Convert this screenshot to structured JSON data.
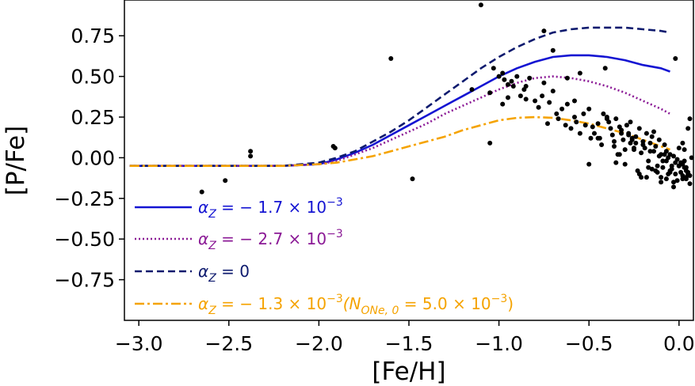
{
  "chart_data": {
    "type": "line",
    "xlabel": "[Fe/H]",
    "ylabel": "[P/Fe]",
    "xlim": [
      -3.08,
      0.08
    ],
    "ylim": [
      -1.0,
      0.97
    ],
    "x_ticks": [
      -3.0,
      -2.5,
      -2.0,
      -1.5,
      -1.0,
      -0.5,
      0.0
    ],
    "x_tick_labels": [
      "−3.0",
      "−2.5",
      "−2.0",
      "−1.5",
      "−1.0",
      "−0.5",
      "0.0"
    ],
    "y_ticks": [
      0.75,
      0.5,
      0.25,
      0.0,
      -0.25,
      -0.5,
      -0.75
    ],
    "y_tick_labels": [
      "0.75",
      "0.50",
      "0.25",
      "0.00",
      "−0.25",
      "−0.50",
      "−0.75"
    ],
    "grid": false,
    "legend_position": "lower-left",
    "series": [
      {
        "name": "αZ = −1.7 × 10⁻³",
        "color": "#1414d2",
        "dash": "solid",
        "x": [
          -3.05,
          -2.5,
          -2.2,
          -2.0,
          -1.9,
          -1.8,
          -1.7,
          -1.6,
          -1.5,
          -1.4,
          -1.3,
          -1.2,
          -1.1,
          -1.0,
          -0.9,
          -0.8,
          -0.7,
          -0.6,
          -0.5,
          -0.4,
          -0.3,
          -0.2,
          -0.1,
          -0.05
        ],
        "y": [
          -0.05,
          -0.05,
          -0.05,
          -0.04,
          -0.01,
          0.03,
          0.08,
          0.14,
          0.2,
          0.26,
          0.32,
          0.38,
          0.44,
          0.5,
          0.55,
          0.59,
          0.62,
          0.63,
          0.63,
          0.62,
          0.6,
          0.57,
          0.55,
          0.53
        ]
      },
      {
        "name": "αZ = −2.7 × 10⁻³",
        "color": "#8b1a96",
        "dash": "dotted",
        "x": [
          -3.05,
          -2.5,
          -2.2,
          -2.0,
          -1.9,
          -1.8,
          -1.7,
          -1.6,
          -1.5,
          -1.4,
          -1.3,
          -1.2,
          -1.1,
          -1.0,
          -0.9,
          -0.8,
          -0.7,
          -0.6,
          -0.5,
          -0.4,
          -0.3,
          -0.2,
          -0.1,
          -0.05
        ],
        "y": [
          -0.05,
          -0.05,
          -0.05,
          -0.04,
          -0.02,
          0.02,
          0.06,
          0.11,
          0.16,
          0.21,
          0.27,
          0.32,
          0.37,
          0.42,
          0.46,
          0.49,
          0.5,
          0.49,
          0.47,
          0.44,
          0.4,
          0.35,
          0.3,
          0.27
        ]
      },
      {
        "name": "αZ = 0",
        "color": "#0d1a6e",
        "dash": "dashed",
        "x": [
          -3.05,
          -2.5,
          -2.2,
          -2.0,
          -1.9,
          -1.8,
          -1.7,
          -1.6,
          -1.5,
          -1.4,
          -1.3,
          -1.2,
          -1.1,
          -1.0,
          -0.9,
          -0.8,
          -0.7,
          -0.6,
          -0.5,
          -0.4,
          -0.3,
          -0.2,
          -0.1,
          -0.05
        ],
        "y": [
          -0.05,
          -0.05,
          -0.05,
          -0.03,
          0.0,
          0.04,
          0.1,
          0.16,
          0.23,
          0.31,
          0.39,
          0.47,
          0.55,
          0.62,
          0.68,
          0.73,
          0.77,
          0.79,
          0.8,
          0.8,
          0.8,
          0.79,
          0.78,
          0.77
        ]
      },
      {
        "name": "αZ = −1.3 × 10⁻³(NONe,0 = 5.0 × 10⁻³)",
        "color": "#f5a300",
        "dash": "dashdot",
        "x": [
          -3.05,
          -2.5,
          -2.2,
          -2.0,
          -1.9,
          -1.8,
          -1.7,
          -1.6,
          -1.5,
          -1.4,
          -1.3,
          -1.2,
          -1.1,
          -1.0,
          -0.9,
          -0.8,
          -0.7,
          -0.6,
          -0.5,
          -0.4,
          -0.3,
          -0.2,
          -0.1,
          -0.05
        ],
        "y": [
          -0.05,
          -0.05,
          -0.05,
          -0.04,
          -0.03,
          -0.01,
          0.01,
          0.04,
          0.07,
          0.1,
          0.13,
          0.17,
          0.2,
          0.23,
          0.245,
          0.25,
          0.245,
          0.23,
          0.21,
          0.18,
          0.15,
          0.11,
          0.07,
          0.05
        ]
      }
    ],
    "scatter": {
      "color": "#000000",
      "x": [
        -2.65,
        -2.52,
        -2.38,
        -2.38,
        -1.92,
        -1.91,
        -1.6,
        -1.48,
        -1.15,
        -1.1,
        -1.05,
        -1.03,
        -1.0,
        -0.98,
        -0.97,
        -0.95,
        -0.93,
        -0.92,
        -0.9,
        -0.88,
        -0.86,
        -0.85,
        -0.83,
        -0.8,
        -0.78,
        -0.76,
        -0.75,
        -0.73,
        -0.72,
        -0.7,
        -0.68,
        -0.67,
        -0.65,
        -0.63,
        -0.62,
        -0.6,
        -0.58,
        -0.57,
        -0.55,
        -0.53,
        -0.52,
        -0.5,
        -0.49,
        -0.48,
        -0.47,
        -0.45,
        -0.44,
        -0.43,
        -0.42,
        -0.4,
        -0.39,
        -0.38,
        -0.37,
        -0.36,
        -0.35,
        -0.34,
        -0.33,
        -0.32,
        -0.31,
        -0.3,
        -0.29,
        -0.28,
        -0.27,
        -0.26,
        -0.25,
        -0.24,
        -0.23,
        -0.22,
        -0.21,
        -0.2,
        -0.19,
        -0.18,
        -0.17,
        -0.16,
        -0.15,
        -0.14,
        -0.13,
        -0.12,
        -0.11,
        -0.1,
        -0.09,
        -0.08,
        -0.07,
        -0.06,
        -0.05,
        -0.04,
        -0.03,
        -0.02,
        -0.01,
        0.0,
        0.01,
        0.02,
        0.03,
        0.04,
        0.05,
        0.06,
        0.07,
        -0.41,
        -0.3,
        -0.22,
        -0.15,
        -0.1,
        -0.05,
        0.0,
        0.02,
        0.04,
        0.06,
        -0.35,
        -0.25,
        -0.18,
        -0.12,
        -0.08,
        -0.03,
        0.03,
        0.05,
        -0.5,
        -0.4,
        -0.32,
        -0.27,
        -0.2,
        -0.14,
        -0.09,
        -0.06,
        -0.02,
        0.01,
        0.03,
        0.05,
        -0.45,
        -0.36,
        -0.28,
        -0.24,
        -0.17,
        -0.11,
        -0.07,
        -0.04,
        -0.01,
        0.02,
        0.04,
        0.06,
        -0.33,
        -0.26,
        -0.21,
        -0.16,
        -0.13,
        -0.1,
        -0.07,
        -0.05,
        -0.02,
        0.0,
        0.02,
        0.04,
        -0.7,
        -0.62,
        -0.55,
        -0.85,
        -0.95,
        -0.98,
        -1.05,
        -0.03,
        -0.75,
        -0.58
      ],
      "y": [
        -0.21,
        -0.14,
        0.04,
        0.01,
        0.07,
        0.06,
        0.61,
        -0.13,
        0.42,
        0.94,
        0.09,
        0.55,
        0.5,
        0.52,
        0.48,
        0.45,
        0.47,
        0.44,
        0.5,
        0.38,
        0.42,
        0.36,
        0.49,
        0.35,
        0.31,
        0.38,
        0.78,
        0.21,
        0.34,
        0.66,
        0.27,
        0.24,
        0.3,
        0.2,
        0.33,
        0.18,
        0.25,
        0.22,
        0.15,
        0.27,
        0.2,
        -0.04,
        0.12,
        0.19,
        0.15,
        0.21,
        0.12,
        0.08,
        0.27,
        0.25,
        0.22,
        0.18,
        0.14,
        0.1,
        0.24,
        0.02,
        0.19,
        0.15,
        0.11,
        0.05,
        0.2,
        0.15,
        0.09,
        0.12,
        0.05,
        0.13,
        -0.08,
        0.18,
        0.03,
        0.1,
        0.06,
        0.15,
        -0.02,
        0.09,
        0.13,
        0.04,
        0.07,
        -0.05,
        0.11,
        0.02,
        -0.02,
        0.08,
        0.04,
        -0.1,
        0.02,
        -0.05,
        0.01,
        0.61,
        -0.01,
        0.06,
        -0.03,
        0.09,
        0.05,
        -0.06,
        0.18,
        0.24,
        0.0,
        0.55,
        -0.04,
        -0.1,
        -0.07,
        -0.12,
        -0.08,
        -0.05,
        -0.13,
        -0.08,
        -0.11,
        -0.03,
        0.06,
        -0.12,
        -0.09,
        0.02,
        -0.15,
        -0.06,
        -0.09,
        0.3,
        0.24,
        0.17,
        0.22,
        0.08,
        0.16,
        -0.06,
        0.0,
        -0.1,
        -0.09,
        -0.02,
        -0.1,
        0.12,
        0.07,
        0.14,
        0.09,
        -0.06,
        0.01,
        -0.02,
        -0.07,
        -0.14,
        -0.04,
        -0.12,
        -0.16,
        0.02,
        0.11,
        -0.12,
        0.04,
        -0.08,
        -0.15,
        -0.13,
        -0.09,
        -0.03,
        -0.05,
        -0.11,
        -0.13,
        0.41,
        0.49,
        0.52,
        0.44,
        0.37,
        0.33,
        0.4,
        -0.18,
        0.46,
        0.35
      ]
    }
  },
  "legend": [
    {
      "prefix": "α",
      "sub": "Z",
      "mid": " = − 1.7 × 10",
      "sup": "−3",
      "after": "",
      "sub2": "",
      "tail": "",
      "sup2": "",
      "close": ""
    },
    {
      "prefix": "α",
      "sub": "Z",
      "mid": " = − 2.7 × 10",
      "sup": "−3",
      "after": "",
      "sub2": "",
      "tail": "",
      "sup2": "",
      "close": ""
    },
    {
      "prefix": "α",
      "sub": "Z",
      "mid": " = 0",
      "sup": "",
      "after": "",
      "sub2": "",
      "tail": "",
      "sup2": "",
      "close": ""
    },
    {
      "prefix": "α",
      "sub": "Z",
      "mid": " = − 1.3 × 10",
      "sup": "−3",
      "after": "(N",
      "sub2": "ONe, 0",
      "tail": " = 5.0 × 10",
      "sup2": "−3",
      "close": ")"
    }
  ]
}
